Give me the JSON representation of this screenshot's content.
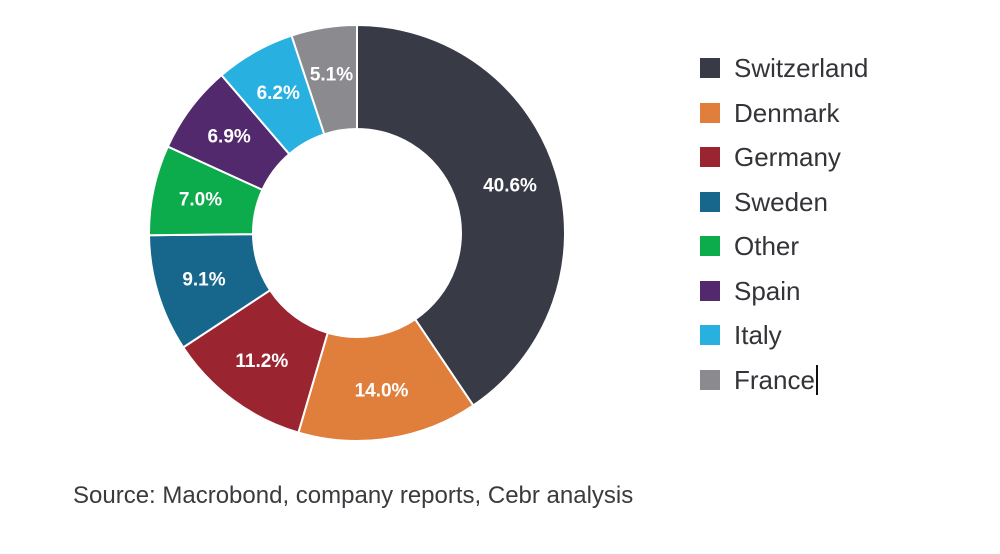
{
  "chart_data": {
    "type": "pie",
    "variant": "donut",
    "title": "",
    "categories": [
      "Switzerland",
      "Denmark",
      "Germany",
      "Sweden",
      "Other",
      "Spain",
      "Italy",
      "France"
    ],
    "values": [
      40.6,
      14.0,
      11.2,
      9.1,
      7.0,
      6.9,
      6.2,
      5.1
    ],
    "value_labels": [
      "40.6%",
      "14.0%",
      "11.2%",
      "9.1%",
      "7.0%",
      "6.9%",
      "6.2%",
      "5.1%"
    ],
    "colors": [
      "#383a45",
      "#e07e3c",
      "#9a2530",
      "#17668c",
      "#0cab4b",
      "#52296d",
      "#27b0e0",
      "#8a8a8f"
    ],
    "legend": {
      "placement": "right",
      "entries": [
        "Switzerland",
        "Denmark",
        "Germany",
        "Sweden",
        "Other",
        "Spain",
        "Italy",
        "France"
      ]
    }
  },
  "source_note": "Source: Macrobond, company reports, Cebr analysis"
}
